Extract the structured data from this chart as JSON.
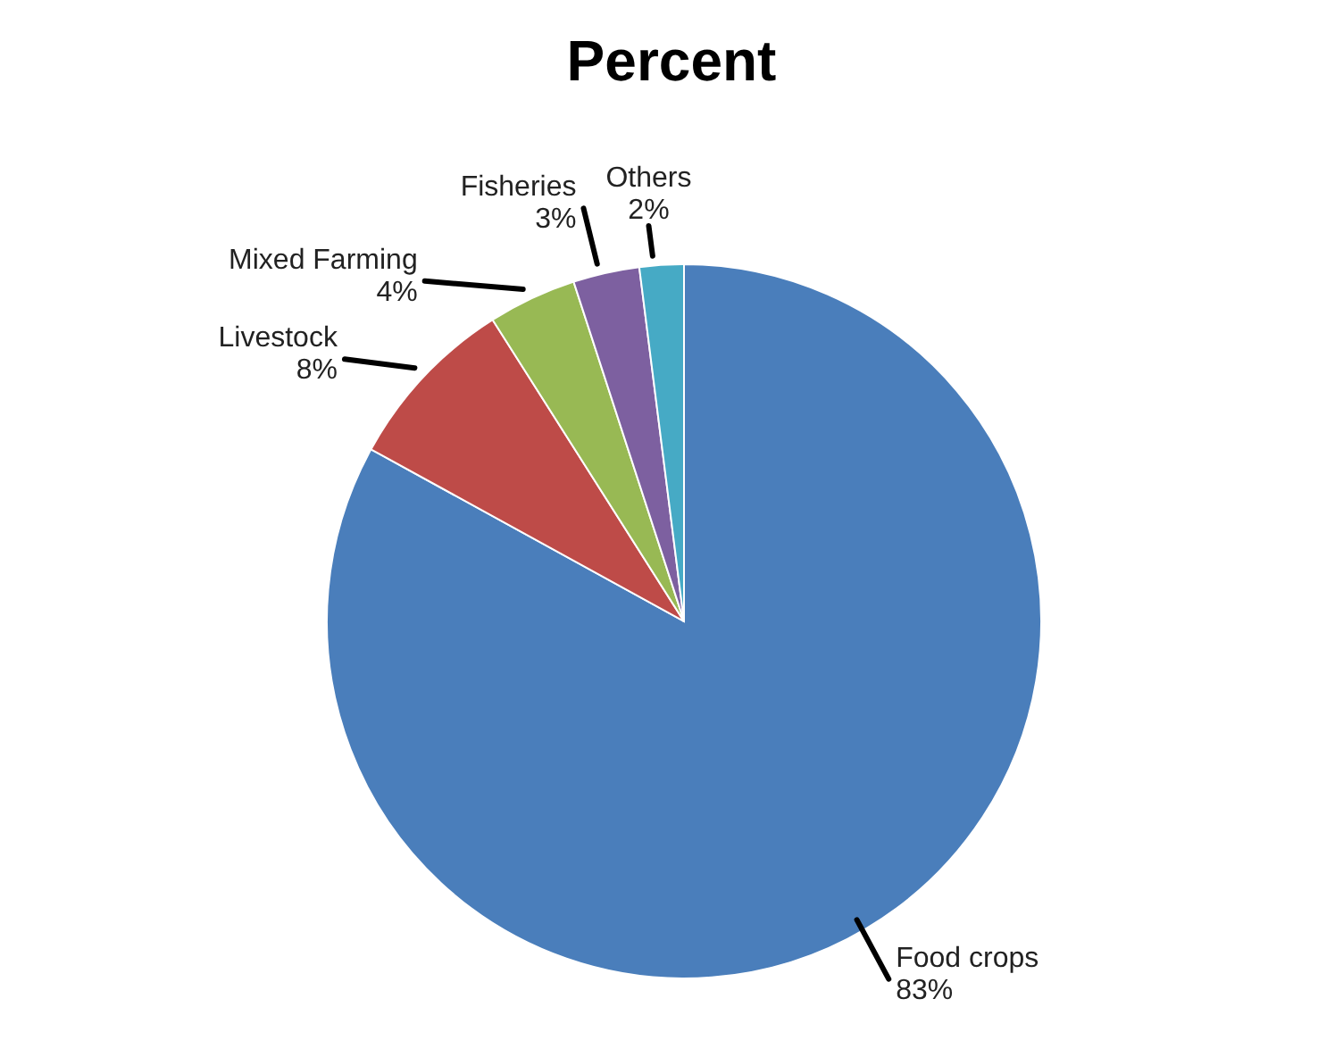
{
  "chart_data": {
    "type": "pie",
    "title": "Percent",
    "categories": [
      "Food crops",
      "Livestock",
      "Mixed Farming",
      "Fisheries",
      "Others"
    ],
    "values": [
      83,
      8,
      4,
      3,
      2
    ],
    "value_labels": [
      "83%",
      "8%",
      "4%",
      "3%",
      "2%"
    ],
    "colors": [
      "#4a7ebb",
      "#be4b48",
      "#98b954",
      "#7d60a0",
      "#46aac5"
    ]
  }
}
